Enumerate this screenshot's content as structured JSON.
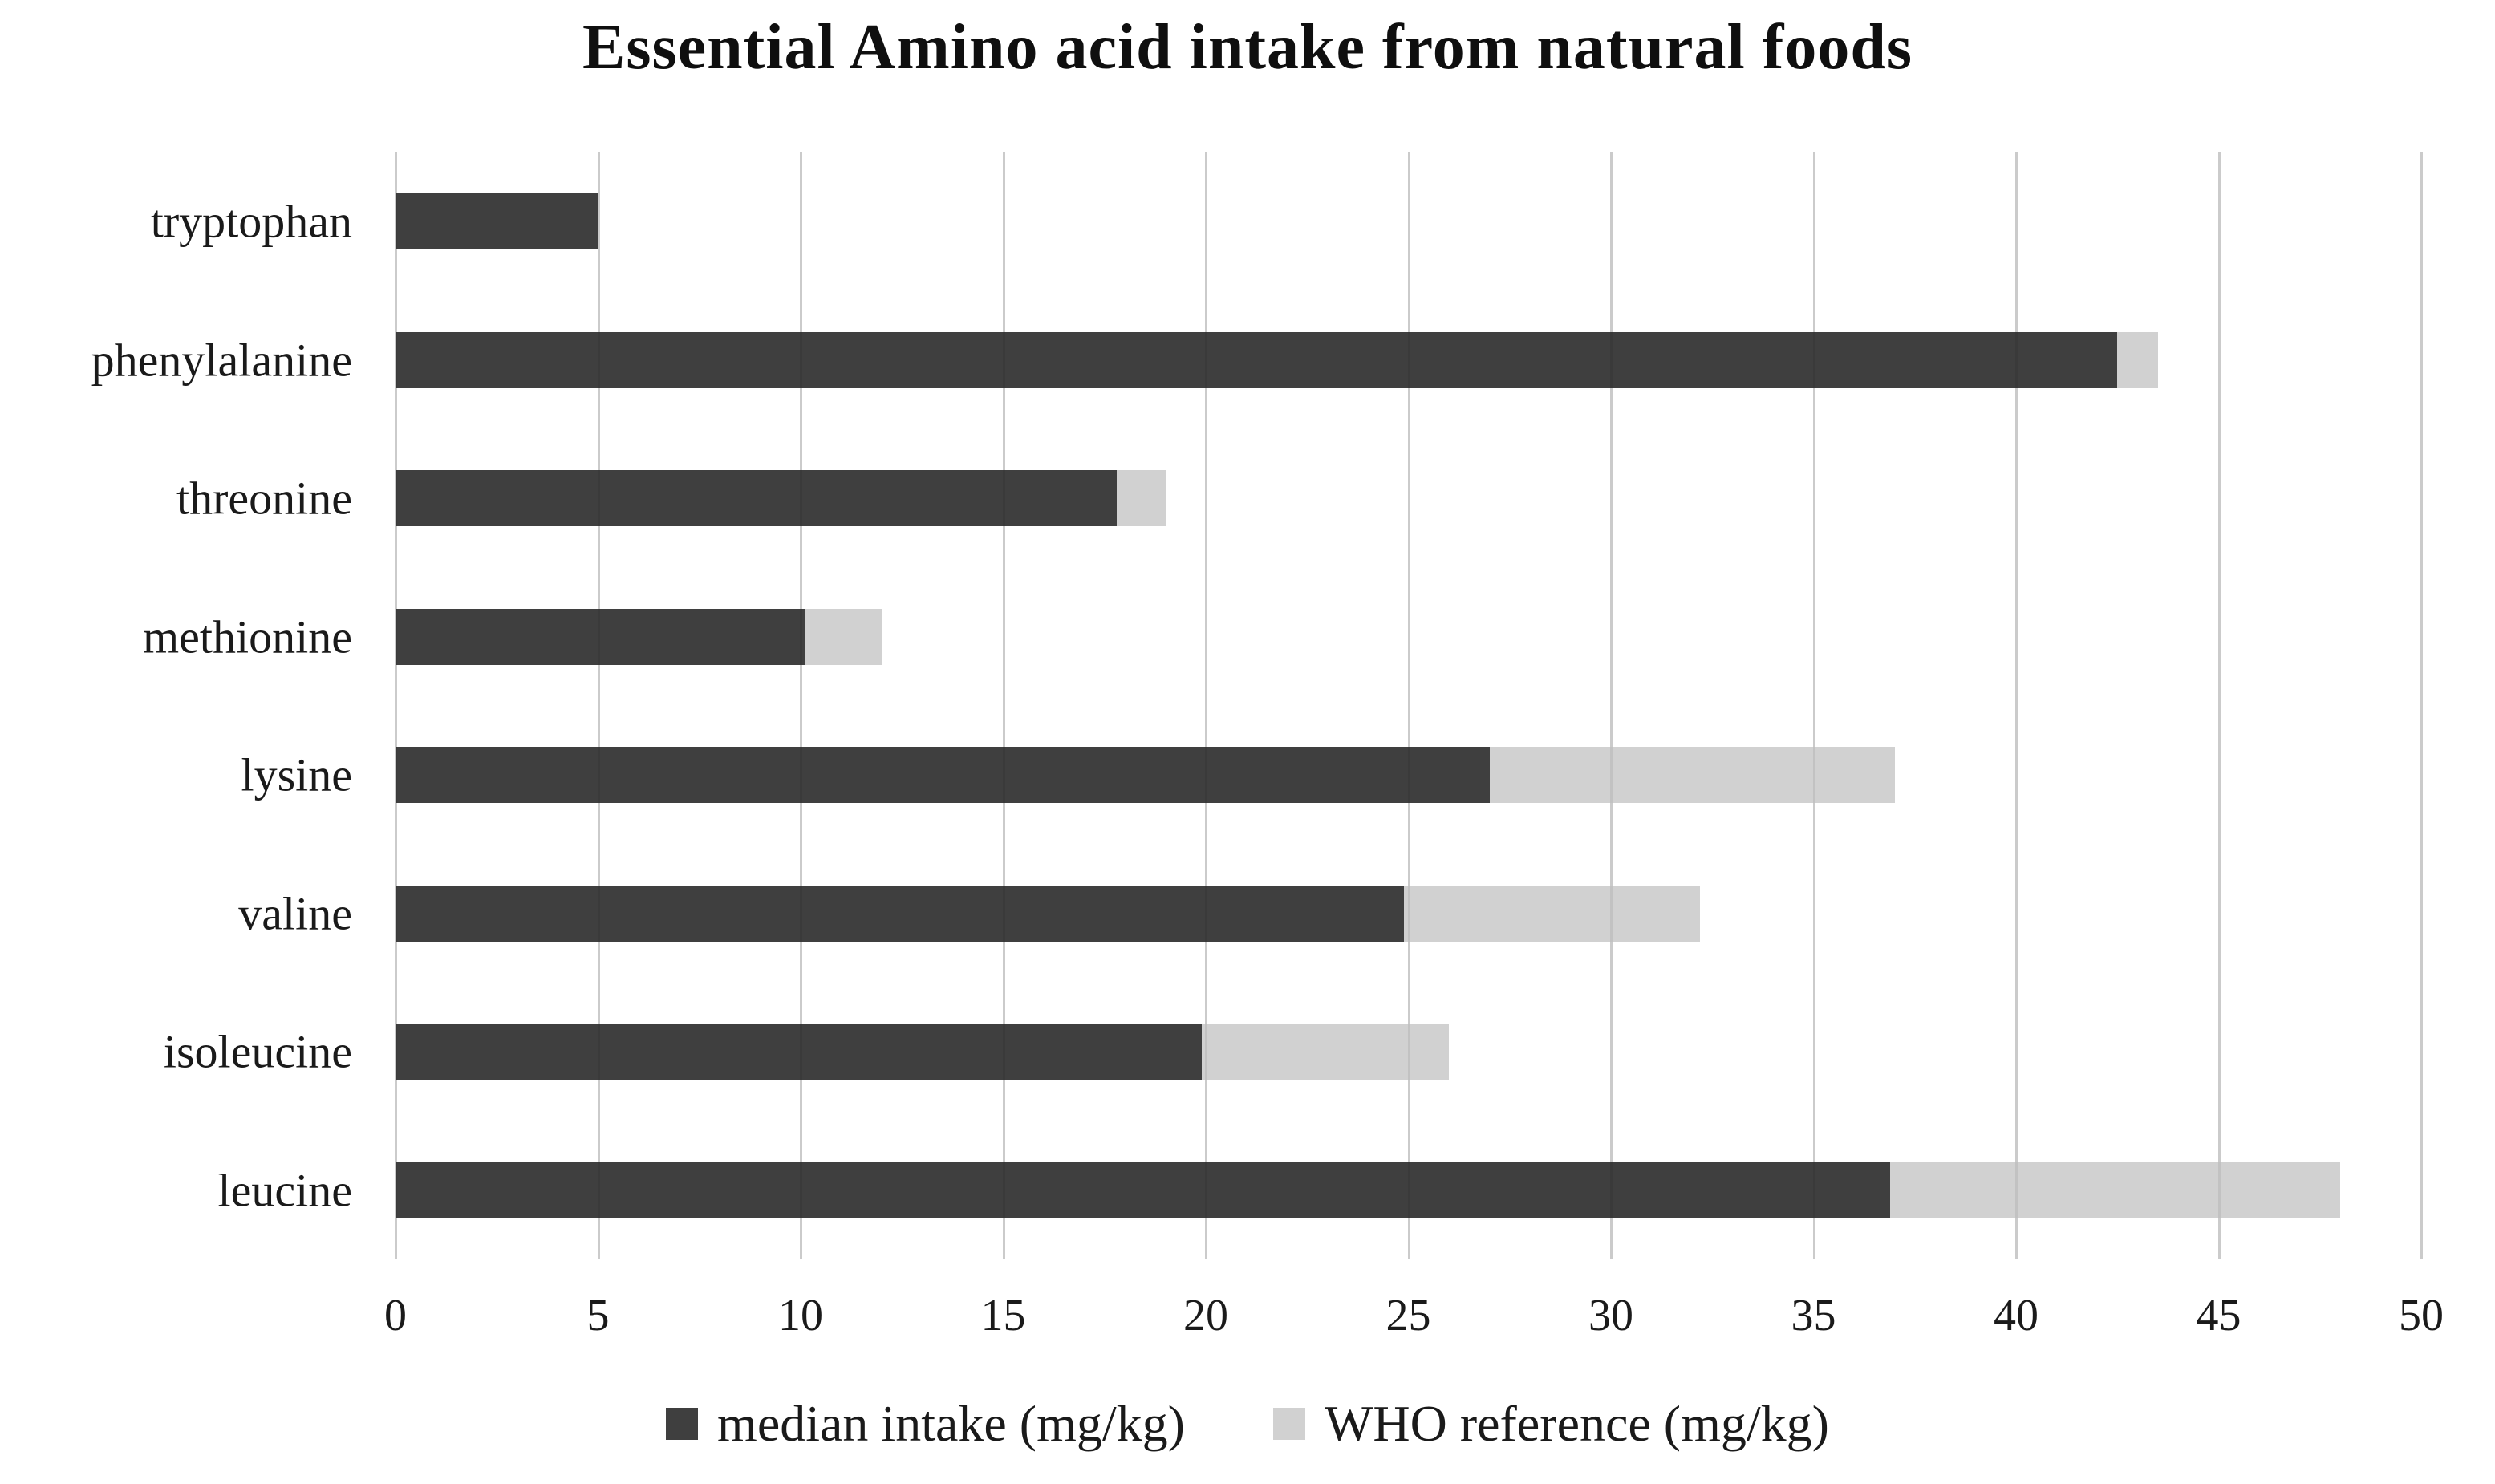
{
  "chart_data": {
    "type": "bar",
    "orientation": "horizontal",
    "title": "Essential Amino acid intake from natural foods",
    "categories": [
      "tryptophan",
      "phenylalanine",
      "threonine",
      "methionine",
      "lysine",
      "valine",
      "isoleucine",
      "leucine"
    ],
    "series": [
      {
        "name": "median intake (mg/kg)",
        "color": "#3f3f3f",
        "values": [
          5,
          42.5,
          17.8,
          10.1,
          27,
          24.9,
          19.9,
          36.9
        ]
      },
      {
        "name": "WHO reference (mg/kg)",
        "color": "#d1d1d1",
        "values": [
          null,
          43.5,
          19,
          12,
          37,
          32.2,
          26,
          48
        ]
      }
    ],
    "series_render": "overlap: WHO reference bar drawn from 0 behind the median intake bar; only the portion beyond the median is visible (none visible for tryptophan)",
    "xlim": [
      0,
      50
    ],
    "x_ticks": [
      0,
      5,
      10,
      15,
      20,
      25,
      30,
      35,
      40,
      45,
      50
    ],
    "grid": "vertical",
    "gridline_color": "#dbdbdb",
    "legend_position": "bottom",
    "background": "#ffffff",
    "text_color": "#1a1a1a"
  }
}
